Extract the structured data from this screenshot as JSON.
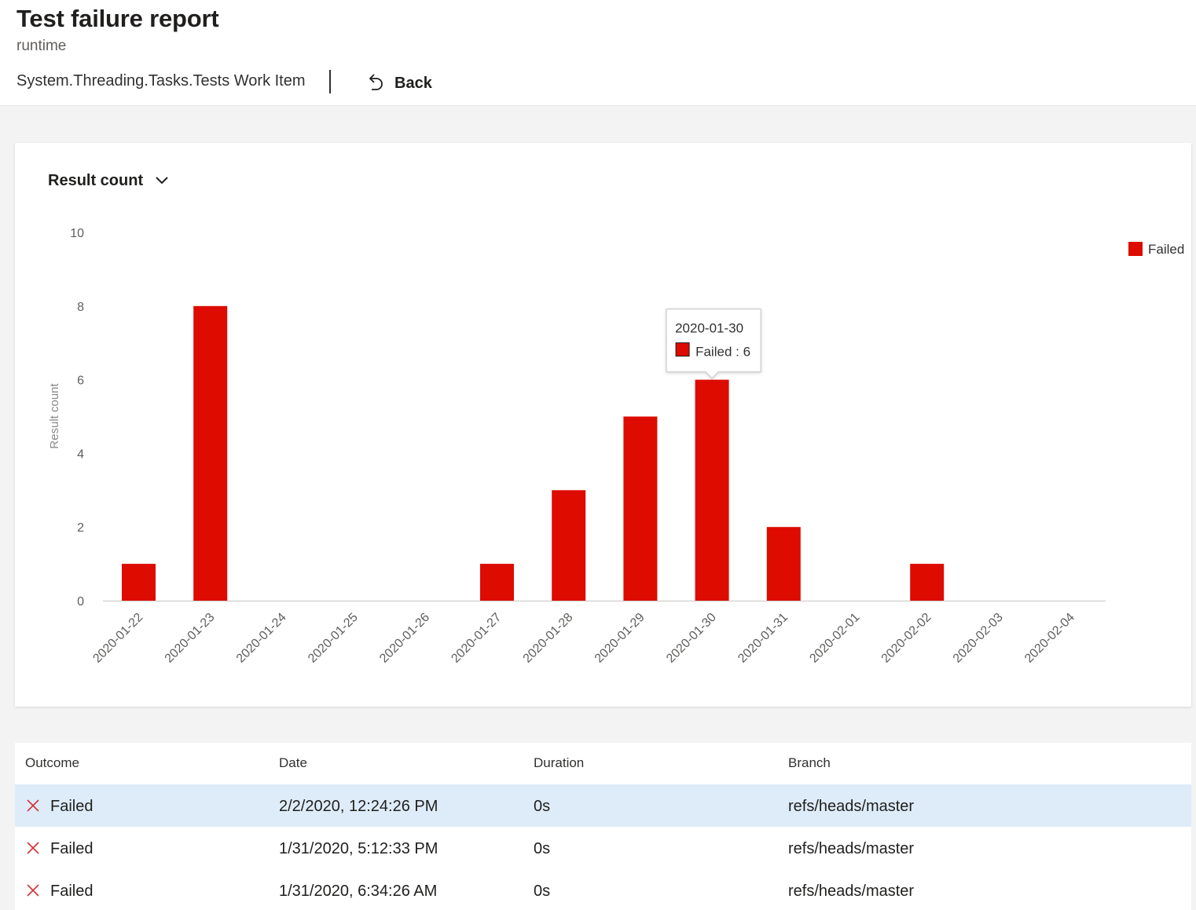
{
  "header": {
    "title": "Test failure report",
    "subtitle": "runtime",
    "work_item": "System.Threading.Tasks.Tests Work Item",
    "back_label": "Back"
  },
  "chart_panel": {
    "metric_label": "Result count",
    "tooltip": {
      "date": "2020-01-30",
      "series": "Failed",
      "separator": " : ",
      "value": "6"
    }
  },
  "chart_data": {
    "type": "bar",
    "categories": [
      "2020-01-22",
      "2020-01-23",
      "2020-01-24",
      "2020-01-25",
      "2020-01-26",
      "2020-01-27",
      "2020-01-28",
      "2020-01-29",
      "2020-01-30",
      "2020-01-31",
      "2020-02-01",
      "2020-02-02",
      "2020-02-03",
      "2020-02-04"
    ],
    "series": [
      {
        "name": "Failed",
        "color": "#dd0b00",
        "values": [
          1,
          8,
          0,
          0,
          0,
          1,
          3,
          5,
          6,
          2,
          0,
          1,
          0,
          0
        ]
      }
    ],
    "ylabel": "Result count",
    "ylim": [
      0,
      10
    ],
    "yticks": [
      0,
      2,
      4,
      6,
      8,
      10
    ],
    "legend_position": "top-right",
    "grid": false
  },
  "table": {
    "columns": [
      "Outcome",
      "Date",
      "Duration",
      "Branch"
    ],
    "rows": [
      {
        "outcome": "Failed",
        "date": "2/2/2020, 12:24:26 PM",
        "duration": "0s",
        "branch": "refs/heads/master",
        "selected": true
      },
      {
        "outcome": "Failed",
        "date": "1/31/2020, 5:12:33 PM",
        "duration": "0s",
        "branch": "refs/heads/master",
        "selected": false
      },
      {
        "outcome": "Failed",
        "date": "1/31/2020, 6:34:26 AM",
        "duration": "0s",
        "branch": "refs/heads/master",
        "selected": false
      }
    ]
  },
  "colors": {
    "failed": "#dd0b00",
    "fail_icon": "#d13438",
    "selected_row": "#deecf9"
  },
  "icons": {
    "back": "undo-arrow-icon",
    "dropdown": "chevron-down-icon",
    "outcome": "close-x-icon"
  }
}
